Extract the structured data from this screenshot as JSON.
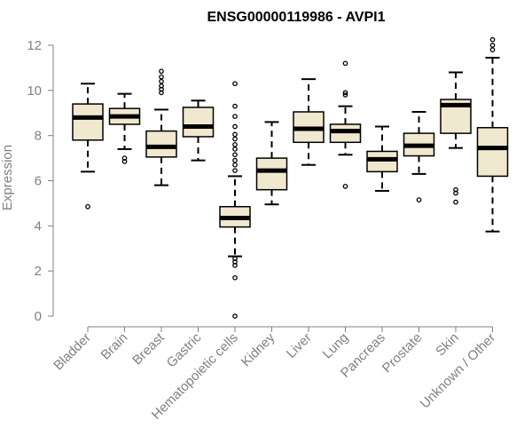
{
  "chart_data": {
    "type": "boxplot",
    "title": "ENSG00000119986 - AVPI1",
    "xlabel": "",
    "ylabel": "Expression",
    "ylim": [
      0,
      12
    ],
    "yticks": [
      "0",
      "2",
      "4",
      "6",
      "8",
      "10",
      "12"
    ],
    "grid": false,
    "box_fill": "#f0e8cf",
    "box_stroke": "#000000",
    "axis_color": "#808080",
    "categories": [
      "Bladder",
      "Brain",
      "Breast",
      "Gastric",
      "Hematopoietic cells",
      "Kidney",
      "Liver",
      "Lung",
      "Pancreas",
      "Prostate",
      "Skin",
      "Unknown / Other"
    ],
    "boxes": [
      {
        "category": "Bladder",
        "whisker_low": 6.4,
        "q1": 7.8,
        "median": 8.8,
        "q3": 9.4,
        "whisker_high": 10.3,
        "outliers": [
          4.85
        ]
      },
      {
        "category": "Brain",
        "whisker_low": 7.4,
        "q1": 8.5,
        "median": 8.85,
        "q3": 9.2,
        "whisker_high": 9.85,
        "outliers": [
          6.85,
          7.0
        ]
      },
      {
        "category": "Breast",
        "whisker_low": 5.8,
        "q1": 7.05,
        "median": 7.5,
        "q3": 8.2,
        "whisker_high": 9.15,
        "outliers": [
          9.9,
          10.05,
          10.2,
          10.4,
          10.6,
          10.85
        ]
      },
      {
        "category": "Gastric",
        "whisker_low": 6.9,
        "q1": 7.95,
        "median": 8.4,
        "q3": 9.25,
        "whisker_high": 9.55,
        "outliers": []
      },
      {
        "category": "Hematopoietic cells",
        "whisker_low": 2.65,
        "q1": 3.95,
        "median": 4.35,
        "q3": 4.85,
        "whisker_high": 6.2,
        "outliers": [
          0.0,
          1.7,
          2.25,
          2.4,
          2.55,
          6.45,
          6.7,
          6.9,
          7.15,
          7.4,
          7.6,
          7.85,
          8.05,
          8.4,
          8.85,
          9.3,
          10.3
        ]
      },
      {
        "category": "Kidney",
        "whisker_low": 4.95,
        "q1": 5.6,
        "median": 6.45,
        "q3": 7.0,
        "whisker_high": 8.6,
        "outliers": []
      },
      {
        "category": "Liver",
        "whisker_low": 6.7,
        "q1": 7.7,
        "median": 8.3,
        "q3": 9.05,
        "whisker_high": 10.5,
        "outliers": []
      },
      {
        "category": "Lung",
        "whisker_low": 7.15,
        "q1": 7.7,
        "median": 8.2,
        "q3": 8.5,
        "whisker_high": 9.3,
        "outliers": [
          5.75,
          9.8,
          9.9,
          11.2
        ]
      },
      {
        "category": "Pancreas",
        "whisker_low": 5.55,
        "q1": 6.4,
        "median": 6.95,
        "q3": 7.3,
        "whisker_high": 8.4,
        "outliers": []
      },
      {
        "category": "Prostate",
        "whisker_low": 6.3,
        "q1": 7.1,
        "median": 7.55,
        "q3": 8.1,
        "whisker_high": 9.05,
        "outliers": [
          5.15
        ]
      },
      {
        "category": "Skin",
        "whisker_low": 7.45,
        "q1": 8.1,
        "median": 9.35,
        "q3": 9.6,
        "whisker_high": 10.8,
        "outliers": [
          5.05,
          5.45,
          5.6
        ]
      },
      {
        "category": "Unknown / Other",
        "whisker_low": 3.75,
        "q1": 6.2,
        "median": 7.45,
        "q3": 8.35,
        "whisker_high": 11.45,
        "outliers": [
          11.8,
          12.0,
          12.25
        ]
      }
    ]
  }
}
